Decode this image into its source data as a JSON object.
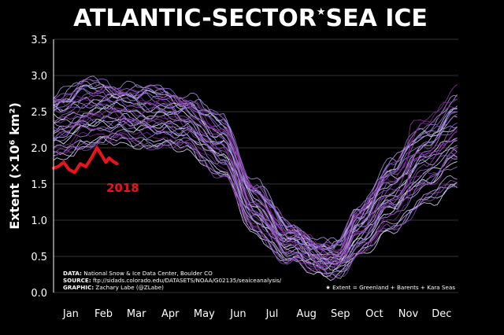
{
  "chart_data": {
    "type": "line",
    "title_left": "ATLANTIC-SECTOR",
    "title_star": "★",
    "title_right": "SEA ICE",
    "ylabel": "Extent (×10⁶ km²)",
    "xlabel": "",
    "ylim": [
      0.0,
      3.5
    ],
    "yticks": [
      "0.0",
      "0.5",
      "1.0",
      "1.5",
      "2.0",
      "2.5",
      "3.0",
      "3.5"
    ],
    "months": [
      "Jan",
      "Feb",
      "Mar",
      "Apr",
      "May",
      "Jun",
      "Jul",
      "Aug",
      "Sep",
      "Oct",
      "Nov",
      "Dec"
    ],
    "grid": true,
    "highlight": {
      "name": "2018",
      "color": "#e8141b",
      "day": [
        1,
        5,
        10,
        15,
        20,
        25,
        30,
        35,
        40,
        45,
        48,
        51,
        54,
        58
      ],
      "extent": [
        1.72,
        1.74,
        1.8,
        1.7,
        1.66,
        1.78,
        1.74,
        1.86,
        2.0,
        1.88,
        1.8,
        1.86,
        1.82,
        1.78
      ]
    },
    "climatology_day": [
      1,
      32,
      60,
      91,
      121,
      152,
      182,
      213,
      244,
      258,
      274,
      305,
      335,
      365
    ],
    "climatology_high": [
      2.8,
      2.95,
      2.9,
      2.85,
      2.75,
      2.45,
      1.55,
      0.95,
      0.7,
      0.7,
      1.2,
      1.85,
      2.35,
      2.75
    ],
    "climatology_low": [
      1.8,
      2.0,
      2.05,
      2.0,
      1.95,
      1.6,
      0.8,
      0.4,
      0.25,
      0.25,
      0.45,
      0.85,
      1.15,
      1.45
    ],
    "colors": {
      "newest": "#7a1e8c",
      "mid": "#9b7fe0",
      "oldest": "#e8f2ff",
      "grid": "#6a6a6a",
      "text": "#ffffff"
    },
    "notes": {
      "data_label": "DATA:",
      "data_text": "National Snow & Ice Data Center, Boulder CO",
      "source_label": "SOURCE:",
      "source_text": "ftp://sidads.colorado.edu/DATASETS/NOAA/G02135/seaiceanalysis/",
      "graphic_label": "GRAPHIC:",
      "graphic_text": "Zachary Labe (@ZLabe)",
      "footnote": "★ Extent = Greenland + Barents + Kara Seas"
    }
  }
}
